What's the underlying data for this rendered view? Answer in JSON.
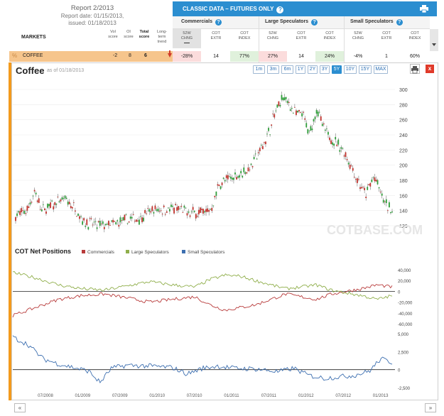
{
  "report": {
    "title": "Report 2/2013",
    "report_date": "Report date: 01/15/2013,",
    "issued": "issued: 01/18/2013"
  },
  "columns": {
    "markets": "MARKETS",
    "vol_score": [
      "Vol",
      "score"
    ],
    "oi_score": [
      "OI",
      "score"
    ],
    "total_score": [
      "Total",
      "score"
    ],
    "long_term_trend": [
      "Long-",
      "term",
      "trend"
    ]
  },
  "classic": {
    "title": "CLASSIC DATA – FUTURES ONLY",
    "help": "?",
    "groups": [
      {
        "label": "Commercials"
      },
      {
        "label": "Large Speculators"
      },
      {
        "label": "Small Speculators"
      }
    ],
    "subheaders": [
      [
        "52W",
        "CHNG"
      ],
      [
        "COT",
        "EXTR"
      ],
      [
        "COT",
        "INDEX"
      ],
      [
        "52W",
        "CHNG"
      ],
      [
        "COT",
        "EXTR"
      ],
      [
        "COT",
        "INDEX"
      ],
      [
        "52W",
        "CHNG"
      ],
      [
        "COT",
        "EXTR"
      ],
      [
        "COT",
        "INDEX"
      ]
    ]
  },
  "row": {
    "market": "COFFEE",
    "vol": "-2",
    "oi": "8",
    "total": "6",
    "trend": "down",
    "values": [
      "-28%",
      "14",
      "77%",
      "27%",
      "14",
      "24%",
      "-4%",
      "1",
      "60%"
    ],
    "colors": [
      "neg",
      "",
      "pos",
      "neg",
      "",
      "pos",
      "",
      "",
      ""
    ]
  },
  "chart": {
    "title": "Coffee",
    "as_of": "as of 01/18/2013",
    "ranges": [
      "1m",
      "3m",
      "6m",
      "1Y",
      "2Y",
      "3Y",
      "5Y",
      "10Y",
      "15Y",
      "MAX"
    ],
    "active_range": "5Y",
    "close_label": "x",
    "watermark": "COTBASE.COM",
    "price_axis": [
      "300",
      "280",
      "260",
      "240",
      "220",
      "200",
      "180",
      "160",
      "140",
      "120"
    ]
  },
  "cot": {
    "title": "COT Net Positions",
    "legend": [
      {
        "label": "Commercials",
        "color": "#b83b3b"
      },
      {
        "label": "Large Speculators",
        "color": "#8fae4a"
      },
      {
        "label": "Small Speculators",
        "color": "#3d6fb0"
      }
    ],
    "top_axis": [
      "40,000",
      "20,000",
      "0",
      "-20,000",
      "-40,000",
      "-60,000"
    ],
    "bottom_axis": [
      "5,000",
      "2,500",
      "0",
      "-2,500"
    ],
    "x_axis": [
      "07/2008",
      "01/2009",
      "07/2009",
      "01/2010",
      "07/2010",
      "01/2011",
      "07/2011",
      "01/2012",
      "07/2012",
      "01/2013"
    ]
  },
  "nav": {
    "prev": "«",
    "next": "»"
  }
}
